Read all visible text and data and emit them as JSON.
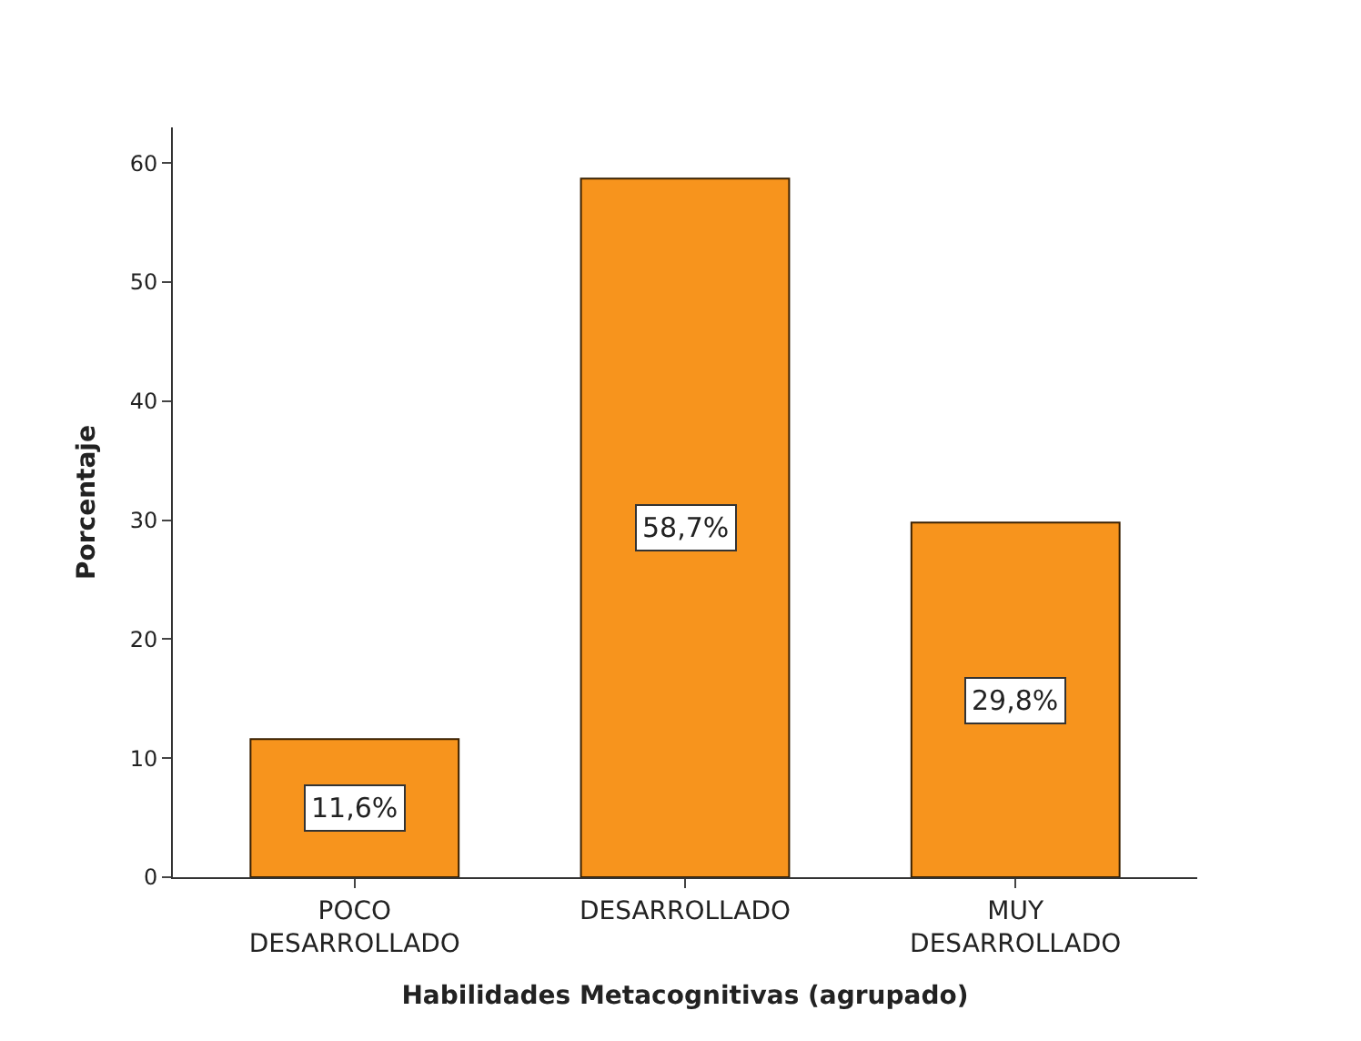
{
  "chart_data": {
    "type": "bar",
    "xlabel": "Habilidades Metacognitivas (agrupado)",
    "ylabel": "Porcentaje",
    "categories": [
      "POCO DESARROLLADO",
      "DESARROLLADO",
      "MUY DESARROLLADO"
    ],
    "values": [
      11.6,
      58.7,
      29.8
    ],
    "value_labels": [
      "11,6%",
      "58,7%",
      "29,8%"
    ],
    "color": "#f7941d",
    "ylim": [
      0,
      63
    ],
    "yticks": [
      0,
      10,
      20,
      30,
      40,
      50,
      60
    ]
  }
}
